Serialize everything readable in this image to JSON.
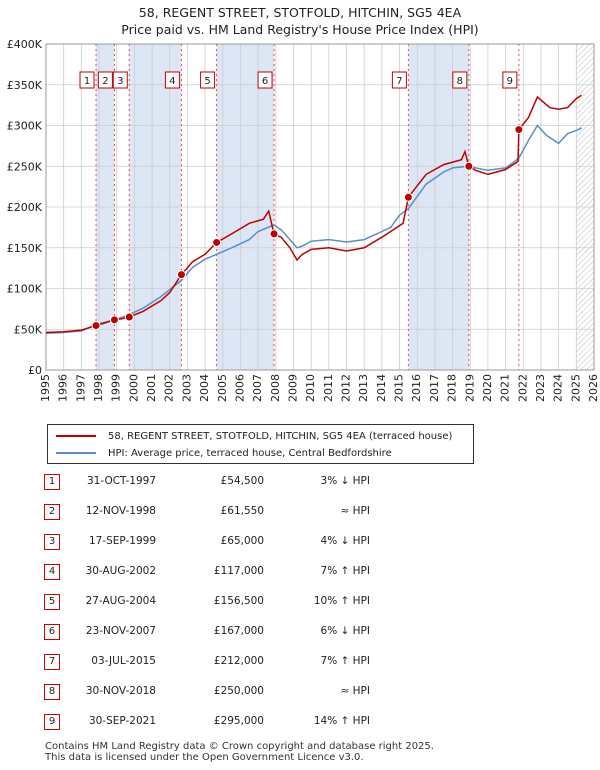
{
  "title_line1": "58, REGENT STREET, STOTFOLD, HITCHIN, SG5 4EA",
  "title_line2": "Price paid vs. HM Land Registry's House Price Index (HPI)",
  "colors": {
    "property": "#c00000",
    "hpi": "#5b8ec7",
    "band": "#dce6f5",
    "grid": "#cccccc",
    "event": "#e05050"
  },
  "chart_data": {
    "type": "line",
    "xlim": [
      1995,
      2026
    ],
    "ylim": [
      0,
      400000
    ],
    "y_ticks": [
      0,
      50000,
      100000,
      150000,
      200000,
      250000,
      300000,
      350000,
      400000
    ],
    "y_tick_labels": [
      "£0",
      "£50K",
      "£100K",
      "£150K",
      "£200K",
      "£250K",
      "£300K",
      "£350K",
      "£400K"
    ],
    "x_ticks": [
      1995,
      1996,
      1997,
      1998,
      1999,
      2000,
      2001,
      2002,
      2003,
      2004,
      2005,
      2006,
      2007,
      2008,
      2009,
      2010,
      2011,
      2012,
      2013,
      2014,
      2015,
      2016,
      2017,
      2018,
      2019,
      2020,
      2021,
      2022,
      2023,
      2024,
      2025,
      2026
    ],
    "x_tick_labels": [
      "1995",
      "1996",
      "1997",
      "1998",
      "1999",
      "2000",
      "2001",
      "2002",
      "2003",
      "2004",
      "2005",
      "2006",
      "2007",
      "2008",
      "2009",
      "2010",
      "2011",
      "2012",
      "2013",
      "2014",
      "2015",
      "2016",
      "2017",
      "2018",
      "2019",
      "2020",
      "2021",
      "2022",
      "2023",
      "2024",
      "2025",
      "2026"
    ],
    "shaded_bands": [
      [
        1997.83,
        1998.87
      ],
      [
        1999.71,
        2002.66
      ],
      [
        2004.65,
        2007.9
      ],
      [
        2015.5,
        2018.92
      ]
    ],
    "future_hatch_from": 2025.0,
    "series": [
      {
        "name": "58, REGENT STREET, STOTFOLD, HITCHIN, SG5 4EA (terraced house)",
        "x": [
          1995.0,
          1996.0,
          1997.0,
          1997.83,
          1998.3,
          1998.87,
          1999.3,
          1999.71,
          2000.5,
          2001.5,
          2002.0,
          2002.66,
          2003.3,
          2004.0,
          2004.65,
          2005.5,
          2006.5,
          2007.3,
          2007.6,
          2007.9,
          2008.3,
          2008.8,
          2009.2,
          2009.5,
          2010.0,
          2011.0,
          2012.0,
          2013.0,
          2014.0,
          2014.5,
          2015.2,
          2015.5,
          2016.0,
          2016.5,
          2017.5,
          2018.5,
          2018.7,
          2018.92,
          2019.3,
          2020.0,
          2021.0,
          2021.7,
          2021.75,
          2022.3,
          2022.8,
          2023.5,
          2024.0,
          2024.5,
          2025.0,
          2025.3
        ],
        "values": [
          46000,
          47000,
          49000,
          54500,
          57500,
          61550,
          63000,
          65000,
          72000,
          85000,
          95000,
          117000,
          133000,
          142000,
          156500,
          167000,
          180000,
          185000,
          195000,
          167000,
          163000,
          150000,
          135000,
          142000,
          148000,
          150000,
          146000,
          150000,
          163000,
          170000,
          180000,
          212000,
          226000,
          240000,
          252000,
          258000,
          268000,
          250000,
          245000,
          240000,
          246000,
          256000,
          295000,
          310000,
          335000,
          322000,
          320000,
          322000,
          333000,
          337000
        ]
      },
      {
        "name": "HPI: Average price, terraced house, Central Bedfordshire",
        "x": [
          1995.0,
          1996.0,
          1997.0,
          1997.83,
          1998.87,
          1999.71,
          2000.5,
          2001.5,
          2002.66,
          2003.3,
          2004.0,
          2004.65,
          2005.5,
          2006.5,
          2007.0,
          2007.9,
          2008.3,
          2008.8,
          2009.2,
          2009.5,
          2010.0,
          2011.0,
          2012.0,
          2013.0,
          2014.0,
          2014.5,
          2015.0,
          2015.5,
          2016.0,
          2016.5,
          2017.5,
          2018.0,
          2018.92,
          2019.5,
          2020.0,
          2021.0,
          2021.75,
          2022.3,
          2022.8,
          2023.3,
          2024.0,
          2024.5,
          2025.0,
          2025.3
        ],
        "values": [
          45000,
          46000,
          48000,
          56000,
          61550,
          68000,
          76000,
          90000,
          110000,
          126000,
          136000,
          142000,
          150000,
          160000,
          170000,
          178000,
          172000,
          160000,
          150000,
          152000,
          158000,
          160000,
          157000,
          160000,
          170000,
          175000,
          190000,
          198000,
          213000,
          228000,
          243000,
          248000,
          250000,
          247000,
          245000,
          248000,
          260000,
          282000,
          300000,
          288000,
          278000,
          290000,
          294000,
          297000
        ]
      }
    ],
    "events": [
      {
        "num": "1",
        "x": 1997.83,
        "y": 54500
      },
      {
        "num": "2",
        "x": 1998.87,
        "y": 61550
      },
      {
        "num": "3",
        "x": 1999.71,
        "y": 65000
      },
      {
        "num": "4",
        "x": 2002.66,
        "y": 117000
      },
      {
        "num": "5",
        "x": 2004.65,
        "y": 156500
      },
      {
        "num": "6",
        "x": 2007.9,
        "y": 167000
      },
      {
        "num": "7",
        "x": 2015.5,
        "y": 212000
      },
      {
        "num": "8",
        "x": 2018.92,
        "y": 250000
      },
      {
        "num": "9",
        "x": 2021.75,
        "y": 295000
      }
    ]
  },
  "legend": {
    "property_label": "58, REGENT STREET, STOTFOLD, HITCHIN, SG5 4EA (terraced house)",
    "hpi_label": "HPI: Average price, terraced house, Central Bedfordshire"
  },
  "sales": [
    {
      "num": "1",
      "date": "31-OCT-1997",
      "price": "£54,500",
      "hpi": "3% ↓ HPI"
    },
    {
      "num": "2",
      "date": "12-NOV-1998",
      "price": "£61,550",
      "hpi": "≈ HPI"
    },
    {
      "num": "3",
      "date": "17-SEP-1999",
      "price": "£65,000",
      "hpi": "4% ↓ HPI"
    },
    {
      "num": "4",
      "date": "30-AUG-2002",
      "price": "£117,000",
      "hpi": "7% ↑ HPI"
    },
    {
      "num": "5",
      "date": "27-AUG-2004",
      "price": "£156,500",
      "hpi": "10% ↑ HPI"
    },
    {
      "num": "6",
      "date": "23-NOV-2007",
      "price": "£167,000",
      "hpi": "6% ↓ HPI"
    },
    {
      "num": "7",
      "date": "03-JUL-2015",
      "price": "£212,000",
      "hpi": "7% ↑ HPI"
    },
    {
      "num": "8",
      "date": "30-NOV-2018",
      "price": "£250,000",
      "hpi": "≈ HPI"
    },
    {
      "num": "9",
      "date": "30-SEP-2021",
      "price": "£295,000",
      "hpi": "14% ↑ HPI"
    }
  ],
  "footer_line1": "Contains HM Land Registry data © Crown copyright and database right 2025.",
  "footer_line2": "This data is licensed under the Open Government Licence v3.0."
}
